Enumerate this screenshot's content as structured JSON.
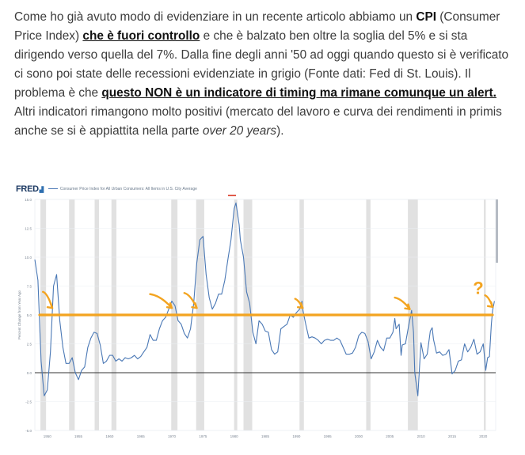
{
  "article": {
    "p1": "Come ho già avuto modo di evidenziare in un recente articolo abbiamo un ",
    "cpi": "CPI",
    "p2": " (Consumer Price Index) ",
    "link1": "che è fuori controllo",
    "p3": " e che è balzato ben oltre la soglia del 5% e si sta dirigendo verso quella del 7%. Dalla fine degli anni '50 ad oggi quando questo si è verificato ci sono poi state delle recessioni evidenziate in grigio (Fonte dati: Fed di St. Louis). Il problema è che ",
    "link2": "questo NON è un indicatore di timing ma rimane comunque un alert.",
    "p4": "  Altri indicatori rimangono molto positivi (mercato del lavoro e curva dei rendimenti in primis anche se si è appiattita nella parte ",
    "italic": "over 20 years",
    "p5": ")."
  },
  "figure": {
    "logo": "FRED",
    "series_title": "Consumer Price Index for All Urban Consumers: All Items in U.S. City Average",
    "annotation_question": "?"
  },
  "chart_data": {
    "type": "line",
    "title": "Consumer Price Index for All Urban Consumers: All Items in U.S. City Average",
    "ylabel": "Percent Change from Year Ago",
    "ylim": [
      -5,
      15
    ],
    "yticks": [
      -5.0,
      -2.5,
      0.0,
      2.5,
      5.0,
      7.5,
      10.0,
      12.5,
      15.0
    ],
    "xlim": [
      1948,
      2022
    ],
    "xticks": [
      1950,
      1955,
      1960,
      1965,
      1970,
      1975,
      1980,
      1985,
      1990,
      1995,
      2000,
      2005,
      2010,
      2015,
      2020
    ],
    "threshold": 5,
    "recessions": [
      [
        1948.9,
        1949.8
      ],
      [
        1953.5,
        1954.4
      ],
      [
        1957.6,
        1958.3
      ],
      [
        1960.3,
        1961.1
      ],
      [
        1969.9,
        1970.9
      ],
      [
        1973.9,
        1975.2
      ],
      [
        1980.0,
        1980.5
      ],
      [
        1981.5,
        1982.9
      ],
      [
        1990.5,
        1991.2
      ],
      [
        2001.2,
        2001.9
      ],
      [
        2007.9,
        2009.5
      ],
      [
        2020.1,
        2020.4
      ]
    ],
    "series": [
      {
        "values": [
          [
            1948,
            9.8
          ],
          [
            1948.5,
            8.0
          ],
          [
            1949,
            1.0
          ],
          [
            1949.5,
            -2.0
          ],
          [
            1950,
            -1.5
          ],
          [
            1950.5,
            1.8
          ],
          [
            1951,
            7.5
          ],
          [
            1951.5,
            8.5
          ],
          [
            1952,
            4.5
          ],
          [
            1952.5,
            2.2
          ],
          [
            1953,
            0.8
          ],
          [
            1953.5,
            0.8
          ],
          [
            1954,
            1.3
          ],
          [
            1954.5,
            0.0
          ],
          [
            1955,
            -0.6
          ],
          [
            1955.5,
            0.2
          ],
          [
            1956,
            0.5
          ],
          [
            1956.5,
            2.2
          ],
          [
            1957,
            3.0
          ],
          [
            1957.5,
            3.5
          ],
          [
            1958,
            3.4
          ],
          [
            1958.5,
            2.4
          ],
          [
            1959,
            0.8
          ],
          [
            1959.5,
            1.0
          ],
          [
            1960,
            1.5
          ],
          [
            1960.5,
            1.5
          ],
          [
            1961,
            1.0
          ],
          [
            1961.5,
            1.2
          ],
          [
            1962,
            1.0
          ],
          [
            1962.5,
            1.3
          ],
          [
            1963,
            1.2
          ],
          [
            1963.5,
            1.3
          ],
          [
            1964,
            1.5
          ],
          [
            1964.5,
            1.2
          ],
          [
            1965,
            1.4
          ],
          [
            1965.5,
            1.8
          ],
          [
            1966,
            2.2
          ],
          [
            1966.5,
            3.3
          ],
          [
            1967,
            2.8
          ],
          [
            1967.5,
            2.8
          ],
          [
            1968,
            3.8
          ],
          [
            1968.5,
            4.5
          ],
          [
            1969,
            4.8
          ],
          [
            1969.5,
            5.5
          ],
          [
            1970,
            6.2
          ],
          [
            1970.5,
            5.8
          ],
          [
            1971,
            4.5
          ],
          [
            1971.5,
            4.2
          ],
          [
            1972,
            3.4
          ],
          [
            1972.5,
            3.0
          ],
          [
            1973,
            3.8
          ],
          [
            1973.5,
            6.0
          ],
          [
            1974,
            9.5
          ],
          [
            1974.5,
            11.5
          ],
          [
            1975,
            11.8
          ],
          [
            1975.5,
            8.5
          ],
          [
            1976,
            6.5
          ],
          [
            1976.5,
            5.5
          ],
          [
            1977,
            6.0
          ],
          [
            1977.5,
            6.8
          ],
          [
            1978,
            6.8
          ],
          [
            1978.5,
            8.0
          ],
          [
            1979,
            9.8
          ],
          [
            1979.5,
            11.5
          ],
          [
            1980,
            14.2
          ],
          [
            1980.3,
            14.7
          ],
          [
            1980.8,
            12.8
          ],
          [
            1981,
            11.5
          ],
          [
            1981.5,
            10.0
          ],
          [
            1982,
            7.0
          ],
          [
            1982.5,
            6.0
          ],
          [
            1983,
            3.5
          ],
          [
            1983.5,
            2.5
          ],
          [
            1984,
            4.5
          ],
          [
            1984.5,
            4.2
          ],
          [
            1985,
            3.6
          ],
          [
            1985.5,
            3.5
          ],
          [
            1986,
            2.0
          ],
          [
            1986.5,
            1.6
          ],
          [
            1987,
            1.8
          ],
          [
            1987.5,
            3.8
          ],
          [
            1988,
            4.0
          ],
          [
            1988.5,
            4.2
          ],
          [
            1989,
            5.0
          ],
          [
            1989.5,
            4.8
          ],
          [
            1990,
            5.2
          ],
          [
            1990.5,
            5.5
          ],
          [
            1990.9,
            6.2
          ],
          [
            1991,
            5.5
          ],
          [
            1991.5,
            4.2
          ],
          [
            1992,
            3.0
          ],
          [
            1992.5,
            3.1
          ],
          [
            1993,
            3.0
          ],
          [
            1993.5,
            2.8
          ],
          [
            1994,
            2.5
          ],
          [
            1994.5,
            2.8
          ],
          [
            1995,
            2.9
          ],
          [
            1995.5,
            2.8
          ],
          [
            1996,
            2.8
          ],
          [
            1996.5,
            3.0
          ],
          [
            1997,
            2.8
          ],
          [
            1997.5,
            2.2
          ],
          [
            1998,
            1.6
          ],
          [
            1998.5,
            1.6
          ],
          [
            1999,
            1.7
          ],
          [
            1999.5,
            2.2
          ],
          [
            2000,
            3.2
          ],
          [
            2000.5,
            3.5
          ],
          [
            2001,
            3.4
          ],
          [
            2001.5,
            2.7
          ],
          [
            2002,
            1.2
          ],
          [
            2002.5,
            1.8
          ],
          [
            2003,
            2.8
          ],
          [
            2003.5,
            2.2
          ],
          [
            2004,
            1.9
          ],
          [
            2004.5,
            3.0
          ],
          [
            2005,
            3.0
          ],
          [
            2005.5,
            3.5
          ],
          [
            2005.8,
            4.7
          ],
          [
            2006,
            3.8
          ],
          [
            2006.5,
            4.2
          ],
          [
            2006.8,
            1.5
          ],
          [
            2007,
            2.4
          ],
          [
            2007.5,
            2.5
          ],
          [
            2008,
            4.0
          ],
          [
            2008.5,
            5.4
          ],
          [
            2008.8,
            3.5
          ],
          [
            2009,
            0.0
          ],
          [
            2009.5,
            -2.0
          ],
          [
            2010,
            2.6
          ],
          [
            2010.5,
            1.2
          ],
          [
            2011,
            1.6
          ],
          [
            2011.5,
            3.6
          ],
          [
            2011.8,
            3.9
          ],
          [
            2012,
            2.9
          ],
          [
            2012.5,
            1.7
          ],
          [
            2013,
            1.8
          ],
          [
            2013.5,
            1.5
          ],
          [
            2014,
            1.6
          ],
          [
            2014.5,
            2.0
          ],
          [
            2015,
            -0.1
          ],
          [
            2015.5,
            0.2
          ],
          [
            2016,
            1.0
          ],
          [
            2016.5,
            1.1
          ],
          [
            2017,
            2.5
          ],
          [
            2017.5,
            1.8
          ],
          [
            2018,
            2.2
          ],
          [
            2018.5,
            2.9
          ],
          [
            2019,
            1.6
          ],
          [
            2019.5,
            1.8
          ],
          [
            2020,
            2.5
          ],
          [
            2020.4,
            0.2
          ],
          [
            2020.7,
            1.3
          ],
          [
            2021,
            1.4
          ],
          [
            2021.3,
            4.2
          ],
          [
            2021.5,
            5.4
          ],
          [
            2021.8,
            6.2
          ]
        ]
      }
    ]
  }
}
